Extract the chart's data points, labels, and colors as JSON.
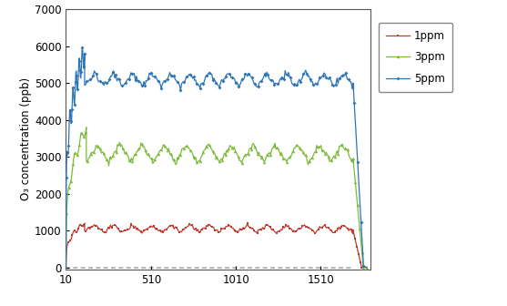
{
  "ylabel": "O₃ concentration (ppb)",
  "xlim": [
    10,
    1800
  ],
  "ylim": [
    -50,
    7000
  ],
  "yticks": [
    0,
    1000,
    2000,
    3000,
    4000,
    5000,
    6000,
    7000
  ],
  "xticks": [
    10,
    510,
    1010,
    1510
  ],
  "xticklabels": [
    "10",
    "510",
    "1010",
    "1510"
  ],
  "legend_labels": [
    "1ppm",
    "3ppm",
    "5ppm"
  ],
  "colors": {
    "1ppm": "#c0392b",
    "3ppm": "#7dbb3c",
    "5ppm": "#2e75b6"
  },
  "bg_color": "#ffffff",
  "dash_color": "#aaaaaa",
  "border_color": "#aaaaaa"
}
